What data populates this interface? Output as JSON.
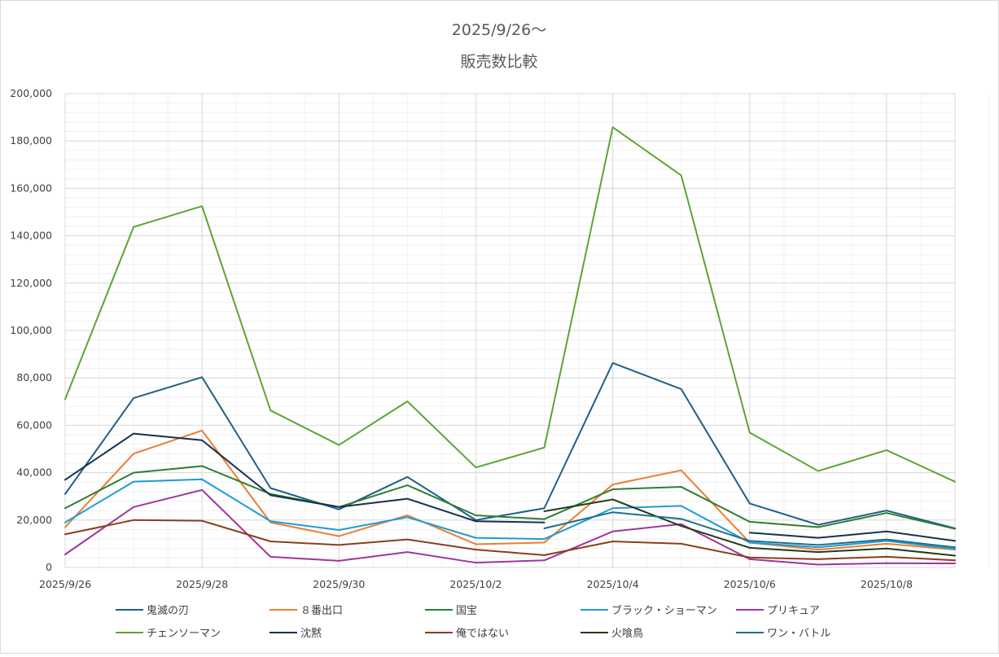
{
  "chart_data": {
    "type": "line",
    "title": "2025/9/26〜",
    "subtitle": "販売数比較",
    "xlabel": "",
    "ylabel": "",
    "ylim": [
      0,
      200000
    ],
    "yticks": [
      0,
      20000,
      40000,
      60000,
      80000,
      100000,
      120000,
      140000,
      160000,
      180000,
      200000
    ],
    "ytick_labels": [
      "0",
      "20,000",
      "40,000",
      "60,000",
      "80,000",
      "100,000",
      "120,000",
      "140,000",
      "160,000",
      "180,000",
      "200,000"
    ],
    "x": [
      "2025/9/26",
      "2025/9/27",
      "2025/9/28",
      "2025/9/29",
      "2025/9/30",
      "2025/10/1",
      "2025/10/2",
      "2025/10/3",
      "2025/10/4",
      "2025/10/5",
      "2025/10/6",
      "2025/10/7",
      "2025/10/8",
      "2025/10/9"
    ],
    "xtick_labels": [
      "2025/9/26",
      "2025/9/28",
      "2025/9/30",
      "2025/10/2",
      "2025/10/4",
      "2025/10/6",
      "2025/10/8"
    ],
    "xtick_index": [
      0,
      2,
      4,
      6,
      8,
      10,
      12
    ],
    "grid": true,
    "legend_position": "bottom",
    "series": [
      {
        "name": "鬼滅の刃",
        "color": "#1f5f86",
        "values": [
          31000,
          71500,
          80300,
          33500,
          24500,
          38200,
          20000,
          25000,
          86300,
          75300,
          27000,
          18000,
          24000,
          16500
        ]
      },
      {
        "name": "８番出口",
        "color": "#ed7d31",
        "values": [
          17000,
          48000,
          57800,
          19000,
          13200,
          22000,
          9800,
          10500,
          35000,
          41000,
          10500,
          7500,
          10000,
          7500
        ]
      },
      {
        "name": "国宝",
        "color": "#2e7d32",
        "values": [
          25000,
          40000,
          42800,
          31000,
          25500,
          34700,
          22000,
          20400,
          33000,
          34000,
          19300,
          17000,
          23000,
          16300
        ]
      },
      {
        "name": "ブラック・ショーマン",
        "color": "#1e9bd7",
        "values": [
          19000,
          36200,
          37200,
          19500,
          15800,
          21200,
          12500,
          12000,
          25000,
          26000,
          10500,
          8500,
          11200,
          7800
        ]
      },
      {
        "name": "プリキュア",
        "color": "#a0359e",
        "values": [
          5500,
          25500,
          32700,
          4500,
          2800,
          6500,
          2000,
          3000,
          15200,
          18300,
          3500,
          1200,
          1800,
          1700
        ]
      },
      {
        "name": "チェンソーマン",
        "color": "#5ca532",
        "values": [
          71000,
          143700,
          152500,
          66300,
          51700,
          70100,
          42200,
          50600,
          185800,
          165500,
          56900,
          40700,
          49500,
          36200
        ]
      },
      {
        "name": "沈黙",
        "color": "#15324f",
        "values": [
          37000,
          56500,
          53700,
          30500,
          25500,
          29000,
          19500,
          19000,
          null,
          null,
          14700,
          12500,
          15200,
          11200
        ]
      },
      {
        "name": "俺ではない",
        "color": "#8b3d1c",
        "values": [
          14000,
          20000,
          19700,
          11000,
          9500,
          11800,
          7500,
          5200,
          11000,
          10000,
          4200,
          3500,
          4500,
          3000
        ]
      },
      {
        "name": "火喰鳥",
        "color": "#243b1c",
        "values": [
          null,
          null,
          null,
          null,
          null,
          null,
          null,
          23700,
          28700,
          17500,
          8300,
          6500,
          8000,
          5000
        ]
      },
      {
        "name": "ワン・バトル",
        "color": "#1f6e8c",
        "values": [
          null,
          null,
          null,
          null,
          null,
          null,
          null,
          16500,
          23300,
          20500,
          11200,
          9500,
          11800,
          8500
        ]
      }
    ]
  }
}
